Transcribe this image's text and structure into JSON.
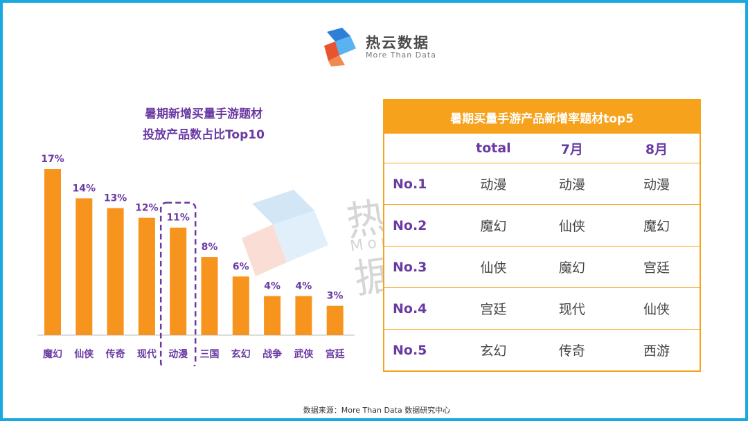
{
  "brand": {
    "name": "热云数据",
    "tagline": "More Than Data"
  },
  "watermark": {
    "name": "热云数据",
    "tagline": "More Than Data"
  },
  "chart_data": {
    "type": "bar",
    "title": [
      "暑期新增买量手游题材",
      "投放产品数占比Top10"
    ],
    "categories": [
      "魔幻",
      "仙侠",
      "传奇",
      "现代",
      "动漫",
      "三国",
      "玄幻",
      "战争",
      "武侠",
      "宫廷"
    ],
    "values": [
      17,
      14,
      13,
      12,
      11,
      8,
      6,
      4,
      4,
      3
    ],
    "value_labels": [
      "17%",
      "14%",
      "13%",
      "12%",
      "11%",
      "8%",
      "6%",
      "4%",
      "4%",
      "3%"
    ],
    "unit": "%",
    "highlight_category": "动漫",
    "ylim": [
      0,
      17.5
    ],
    "grid": false,
    "colors": {
      "bar": "#f7941d",
      "label": "#6a3aa3",
      "highlight": "#6a3aa3"
    }
  },
  "table": {
    "title": "暑期买量手游产品新增率题材top5",
    "columns": [
      "",
      "total",
      "7月",
      "8月"
    ],
    "rows": [
      [
        "No.1",
        "动漫",
        "动漫",
        "动漫"
      ],
      [
        "No.2",
        "魔幻",
        "仙侠",
        "魔幻"
      ],
      [
        "No.3",
        "仙侠",
        "魔幻",
        "宫廷"
      ],
      [
        "No.4",
        "宫廷",
        "现代",
        "仙侠"
      ],
      [
        "No.5",
        "玄幻",
        "传奇",
        "西游"
      ]
    ],
    "colors": {
      "accent": "#f7a21c",
      "rank": "#6a3aa3"
    }
  },
  "source": "数据来源：More Than Data 数据研究中心",
  "colors": {
    "frame": "#19a9e0"
  }
}
